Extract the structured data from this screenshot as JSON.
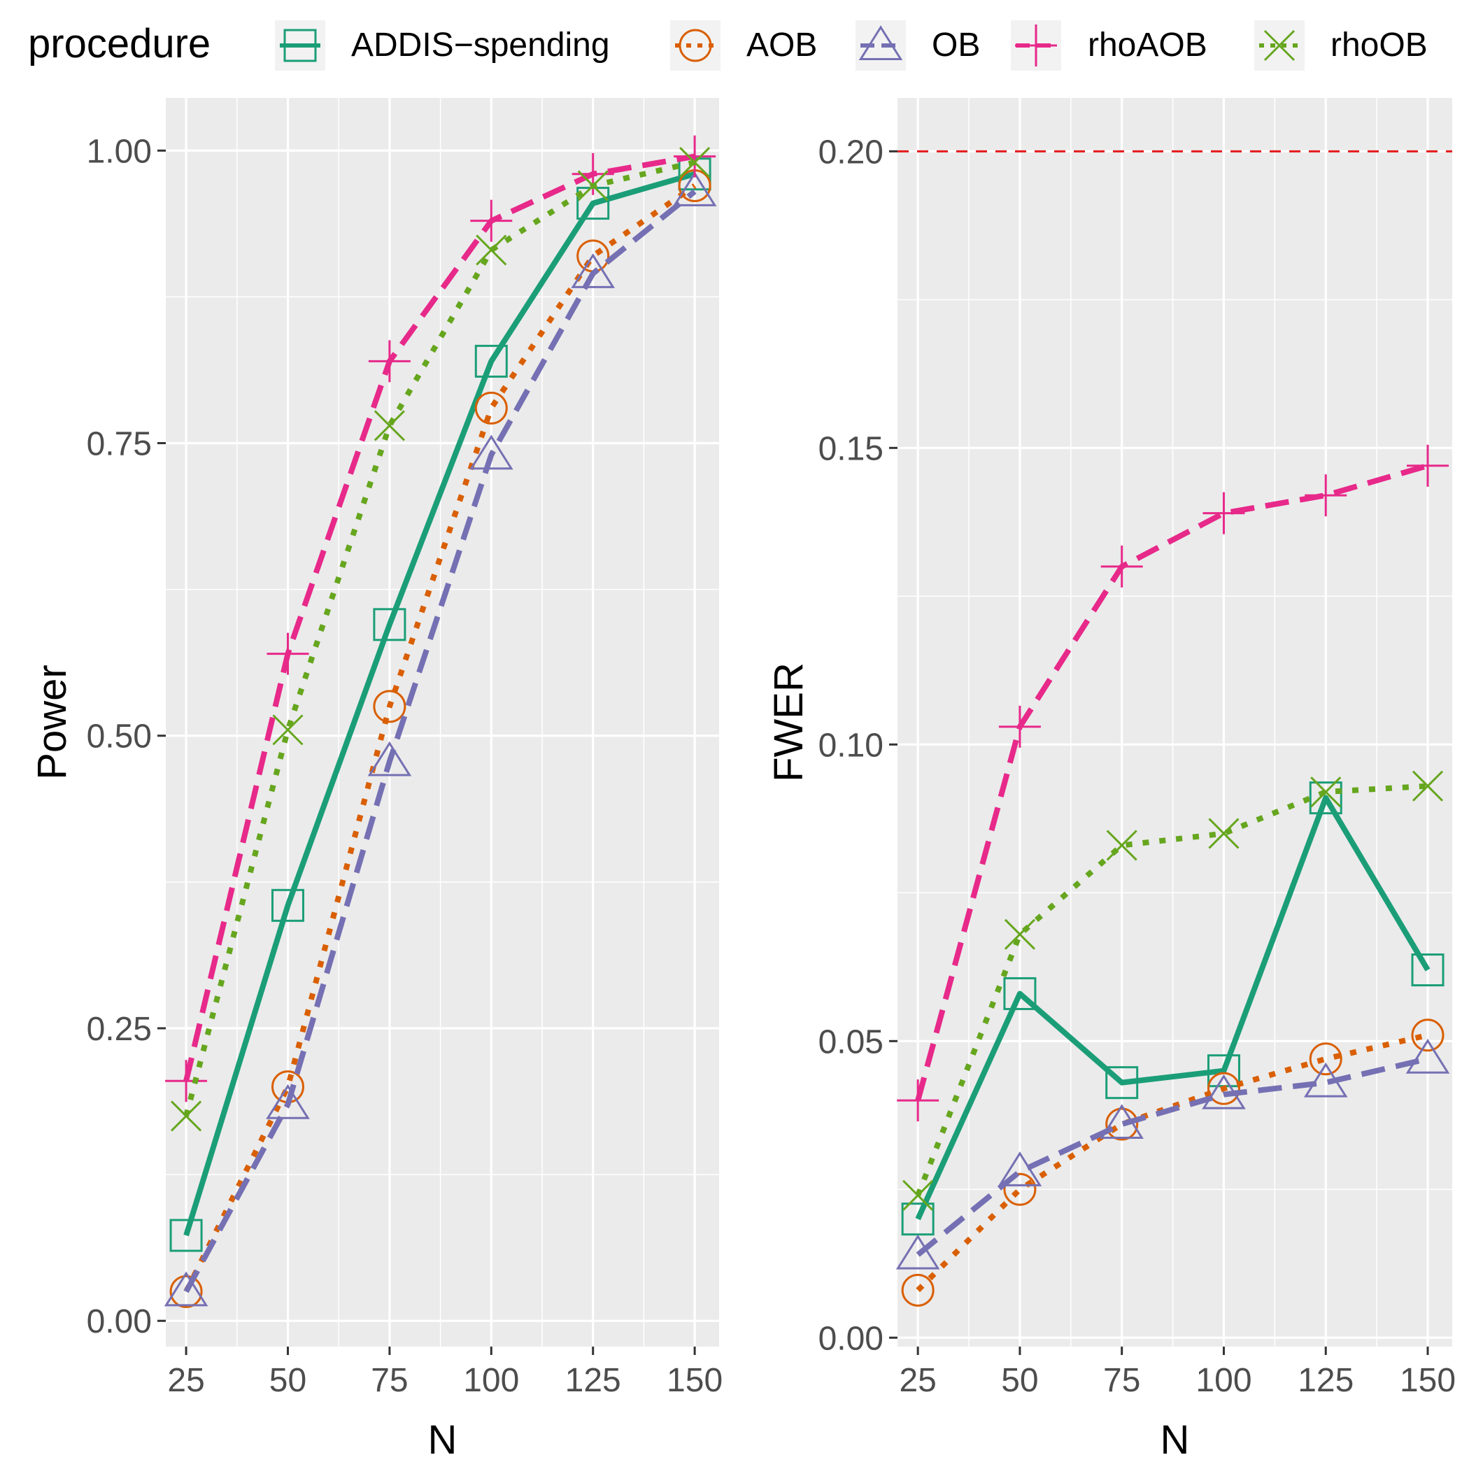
{
  "legend": {
    "title": "procedure",
    "entries": [
      {
        "name": "ADDIS−spending",
        "key": "addis"
      },
      {
        "name": "AOB",
        "key": "aob"
      },
      {
        "name": "OB",
        "key": "ob"
      },
      {
        "name": "rhoAOB",
        "key": "rhoaob"
      },
      {
        "name": "rhoOB",
        "key": "rhoob"
      }
    ]
  },
  "styles": {
    "addis": {
      "color": "#1B9E77",
      "dash": "solid",
      "marker": "square"
    },
    "aob": {
      "color": "#D95F02",
      "dash": "dotted",
      "marker": "circle"
    },
    "ob": {
      "color": "#7570B3",
      "dash": "dashed",
      "marker": "triangle"
    },
    "rhoaob": {
      "color": "#E7298A",
      "dash": "dashed",
      "marker": "plus"
    },
    "rhoob": {
      "color": "#66A61E",
      "dash": "dotted",
      "marker": "cross"
    }
  },
  "colors": {
    "panel_bg": "#EBEBEB",
    "grid": "#FFFFFF",
    "reference_line": "#E41A1C"
  },
  "chart_data": [
    {
      "type": "line",
      "panel": "power",
      "xlabel": "N",
      "ylabel": "Power",
      "x": [
        25,
        50,
        75,
        100,
        125,
        150
      ],
      "xlim": [
        20,
        156
      ],
      "ylim": [
        -0.022,
        1.045
      ],
      "xticks": [
        25,
        50,
        75,
        100,
        125,
        150
      ],
      "xtick_labels": [
        "25",
        "50",
        "75",
        "100",
        "125",
        "150"
      ],
      "yticks": [
        0,
        0.25,
        0.5,
        0.75,
        1
      ],
      "ytick_labels": [
        "0.00",
        "0.25",
        "0.50",
        "0.75",
        "1.00"
      ],
      "series": [
        {
          "key": "addis",
          "name": "ADDIS−spending",
          "values": [
            0.073,
            0.355,
            0.595,
            0.82,
            0.955,
            0.98
          ]
        },
        {
          "key": "aob",
          "name": "AOB",
          "values": [
            0.025,
            0.2,
            0.525,
            0.78,
            0.91,
            0.97
          ]
        },
        {
          "key": "ob",
          "name": "OB",
          "values": [
            0.025,
            0.185,
            0.478,
            0.74,
            0.895,
            0.965
          ]
        },
        {
          "key": "rhoaob",
          "name": "rhoAOB",
          "values": [
            0.205,
            0.57,
            0.82,
            0.94,
            0.98,
            0.995
          ]
        },
        {
          "key": "rhoob",
          "name": "rhoOB",
          "values": [
            0.175,
            0.505,
            0.765,
            0.915,
            0.97,
            0.99
          ]
        }
      ]
    },
    {
      "type": "line",
      "panel": "fwer",
      "xlabel": "N",
      "ylabel": "FWER",
      "x": [
        25,
        50,
        75,
        100,
        125,
        150
      ],
      "xlim": [
        20,
        156
      ],
      "ylim": [
        -0.0015,
        0.209
      ],
      "xticks": [
        25,
        50,
        75,
        100,
        125,
        150
      ],
      "xtick_labels": [
        "25",
        "50",
        "75",
        "100",
        "125",
        "150"
      ],
      "yticks": [
        0,
        0.05,
        0.1,
        0.15,
        0.2
      ],
      "ytick_labels": [
        "0.00",
        "0.05",
        "0.10",
        "0.15",
        "0.20"
      ],
      "reference_line": 0.2,
      "series": [
        {
          "key": "addis",
          "name": "ADDIS−spending",
          "values": [
            0.02,
            0.058,
            0.043,
            0.045,
            0.091,
            0.062
          ]
        },
        {
          "key": "aob",
          "name": "AOB",
          "values": [
            0.008,
            0.025,
            0.036,
            0.042,
            0.047,
            0.051
          ]
        },
        {
          "key": "ob",
          "name": "OB",
          "values": [
            0.014,
            0.028,
            0.036,
            0.041,
            0.043,
            0.047
          ]
        },
        {
          "key": "rhoaob",
          "name": "rhoAOB",
          "values": [
            0.04,
            0.103,
            0.13,
            0.139,
            0.142,
            0.147
          ]
        },
        {
          "key": "rhoob",
          "name": "rhoOB",
          "values": [
            0.024,
            0.068,
            0.083,
            0.085,
            0.092,
            0.093
          ]
        }
      ]
    }
  ]
}
